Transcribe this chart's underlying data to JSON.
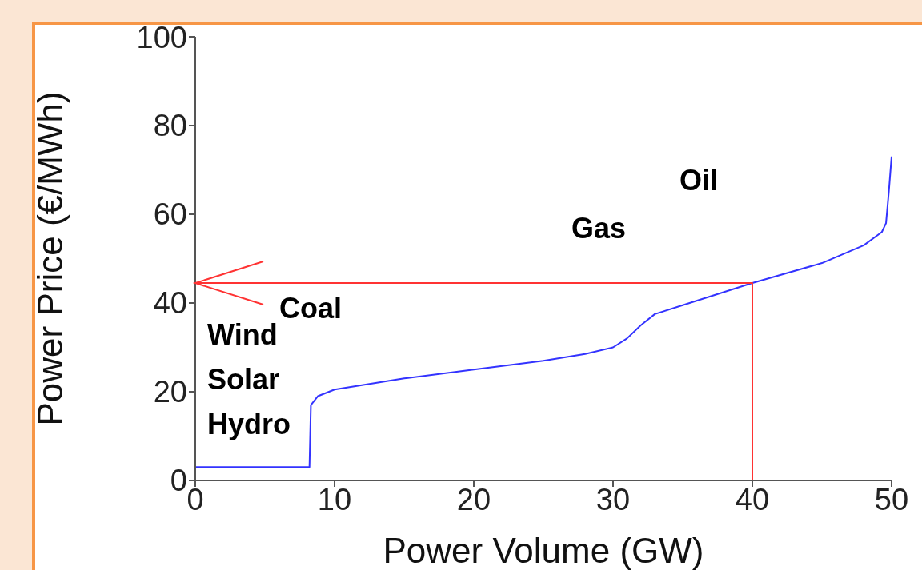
{
  "chart_data": {
    "type": "line",
    "xlabel": "Power Volume (GW)",
    "ylabel": "Power Price (€/MWh)",
    "xlim": [
      0,
      50
    ],
    "xticks": [
      0,
      10,
      20,
      30,
      40,
      50
    ],
    "ylim": [
      0,
      100
    ],
    "yticks": [
      0,
      20,
      40,
      60,
      80,
      100
    ],
    "grid": false,
    "legend": false,
    "marker": "none",
    "line_style": "solid",
    "series": [
      {
        "color": "#3333ff",
        "x": [
          0,
          8.2,
          8.3,
          8.8,
          10,
          15,
          20,
          25,
          28,
          30,
          31,
          32,
          33,
          35,
          40,
          45,
          48,
          49.3,
          49.6,
          49.8,
          50
        ],
        "values": [
          3,
          3,
          17,
          19,
          20.5,
          23,
          25,
          27,
          28.5,
          30,
          32,
          35,
          37.5,
          39.5,
          44.5,
          49,
          53,
          56,
          58,
          65,
          73
        ]
      },
      {
        "color": "#ff3333",
        "x": [
          0,
          40,
          40
        ],
        "values": [
          44.5,
          44.5,
          0
        ]
      }
    ],
    "annotations": [
      "Wind",
      "Solar",
      "Hydro",
      "Coal",
      "Gas",
      "Oil"
    ]
  }
}
